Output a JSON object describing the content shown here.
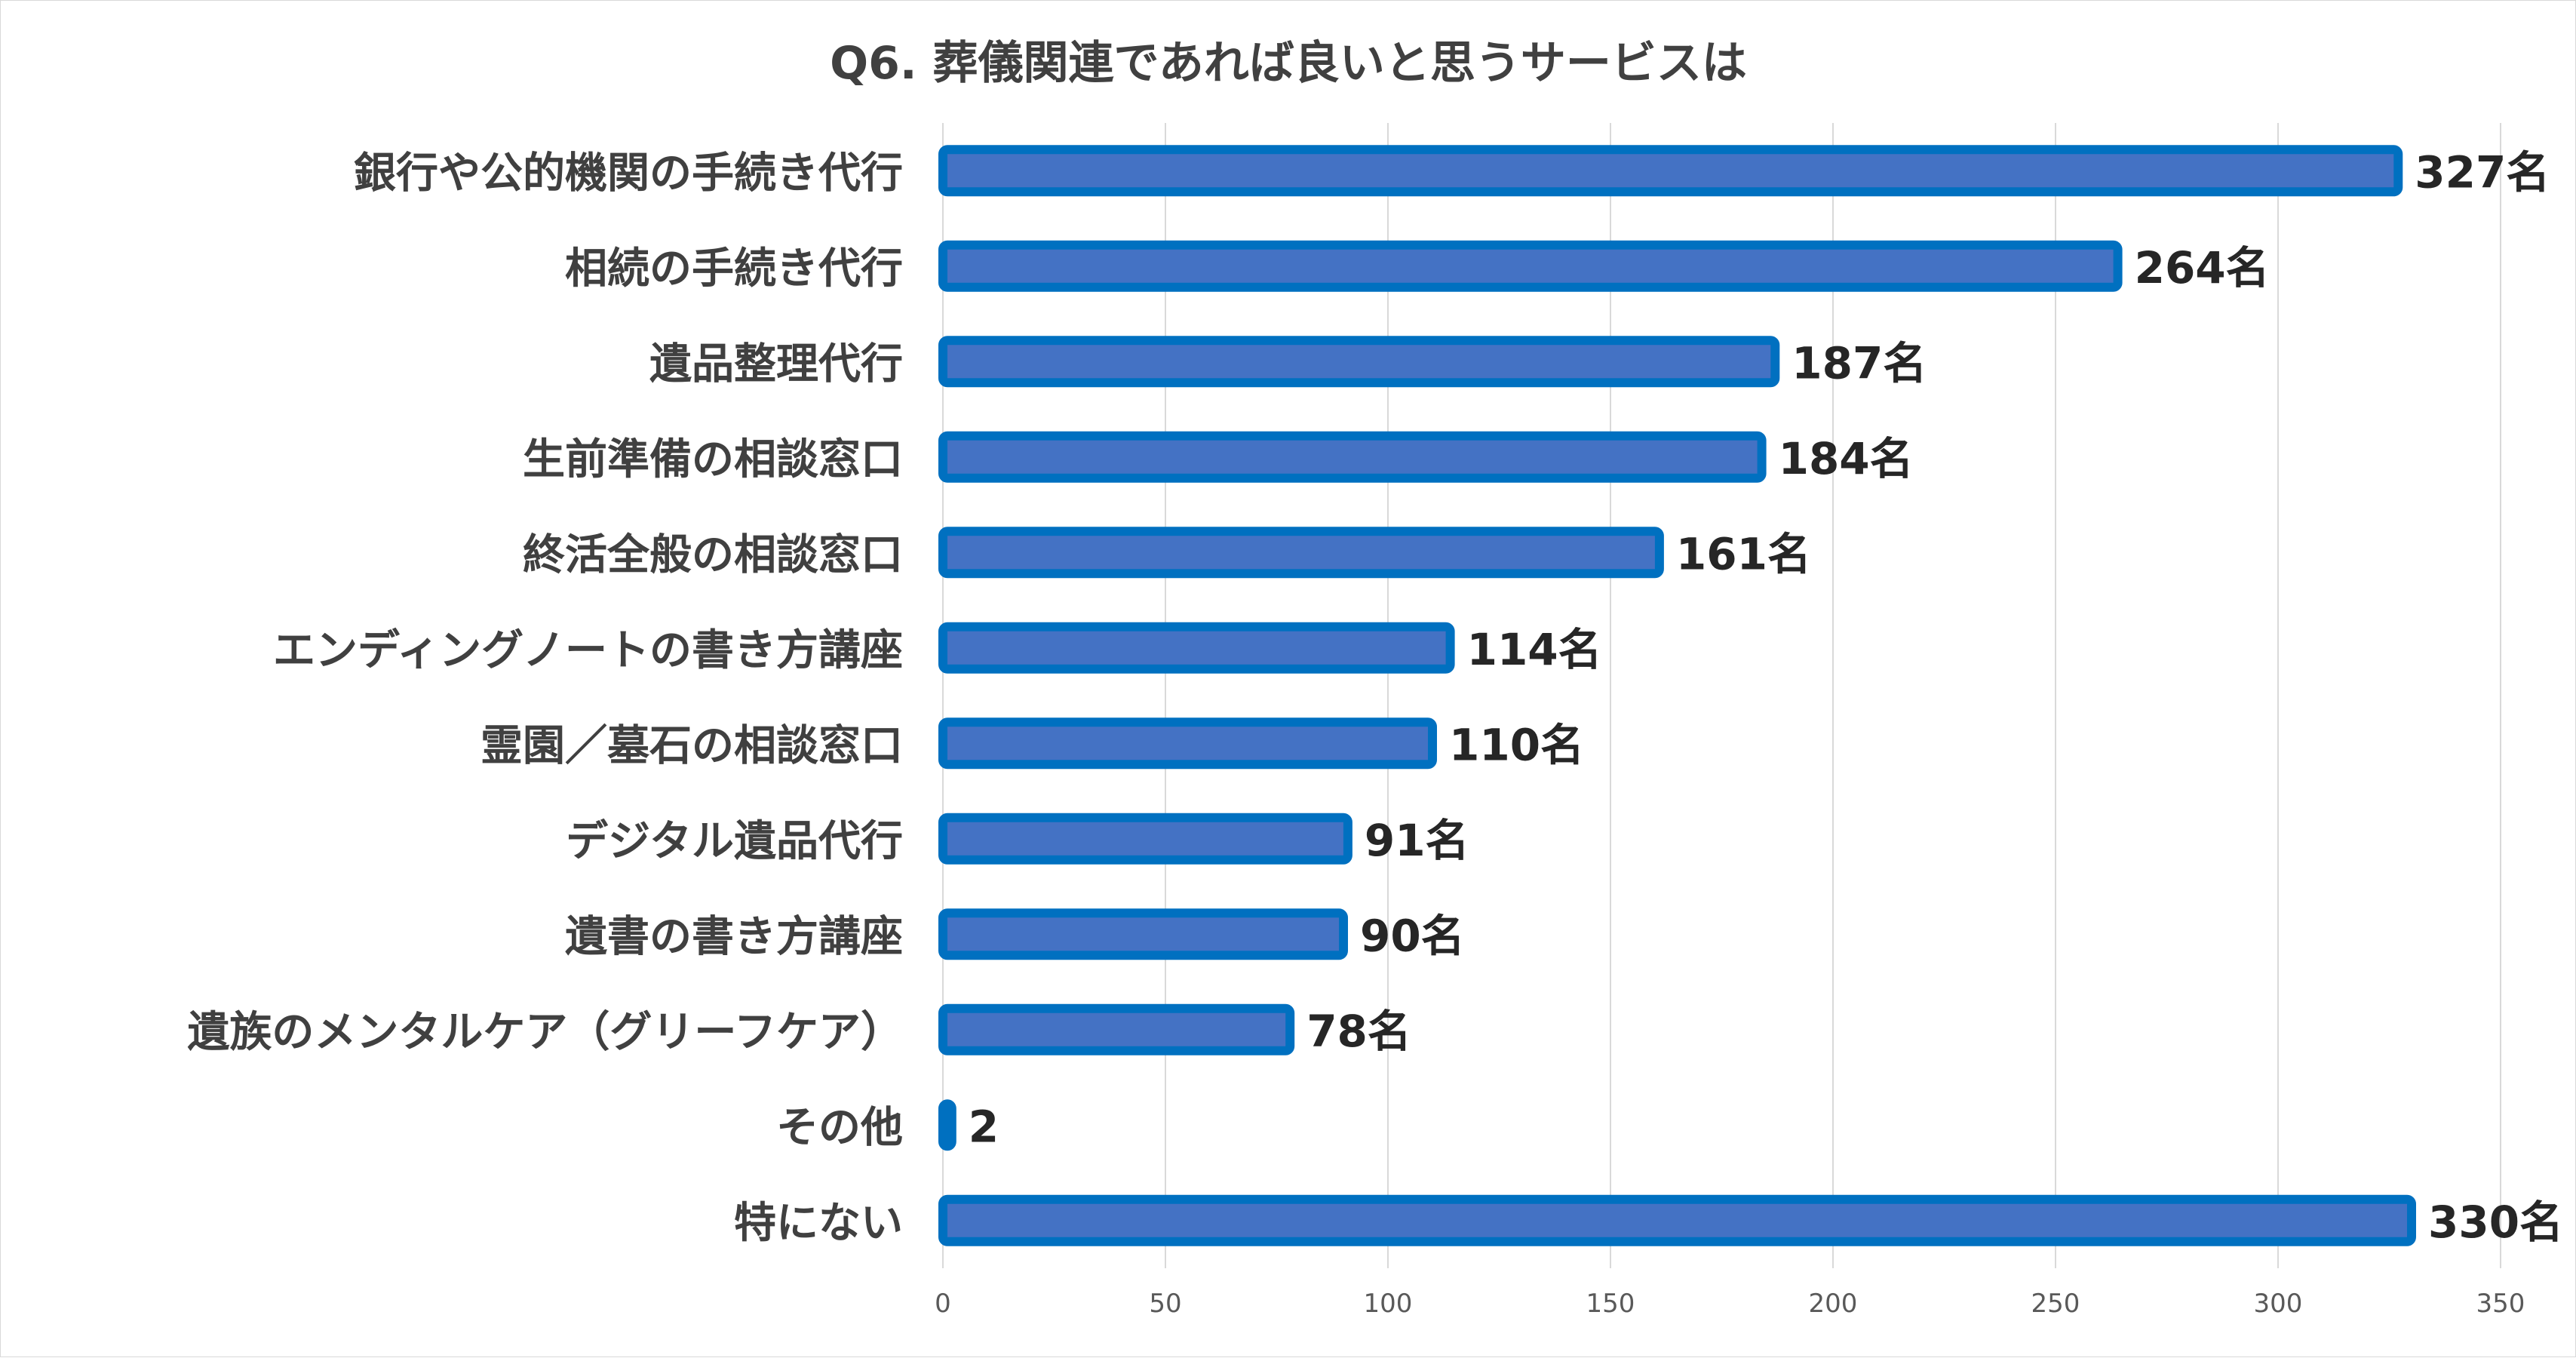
{
  "chart_data": {
    "type": "bar",
    "orientation": "horizontal",
    "title": "Q6. 葬儀関連であれば良いと思うサービスは",
    "xlabel": "",
    "ylabel": "",
    "xlim": [
      0,
      350
    ],
    "xticks": [
      0,
      50,
      100,
      150,
      200,
      250,
      300,
      350
    ],
    "grid": true,
    "categories": [
      "銀行や公的機関の手続き代行",
      "相続の手続き代行",
      "遺品整理代行",
      "生前準備の相談窓口",
      "終活全般の相談窓口",
      "エンディングノートの書き方講座",
      "霊園／墓石の相談窓口",
      "デジタル遺品代行",
      "遺書の書き方講座",
      "遺族のメンタルケア（グリーフケア）",
      "その他",
      "特にない"
    ],
    "values": [
      327,
      264,
      187,
      184,
      161,
      114,
      110,
      91,
      90,
      78,
      2,
      330
    ],
    "value_labels": [
      "327名",
      "264名",
      "187名",
      "184名",
      "161名",
      "114名",
      "110名",
      "91名",
      "90名",
      "78名",
      "2",
      "330名"
    ],
    "colors": {
      "bar_fill": "#4472c4",
      "bar_edge": "#0070c0",
      "grid": "#d9d9d9"
    }
  }
}
